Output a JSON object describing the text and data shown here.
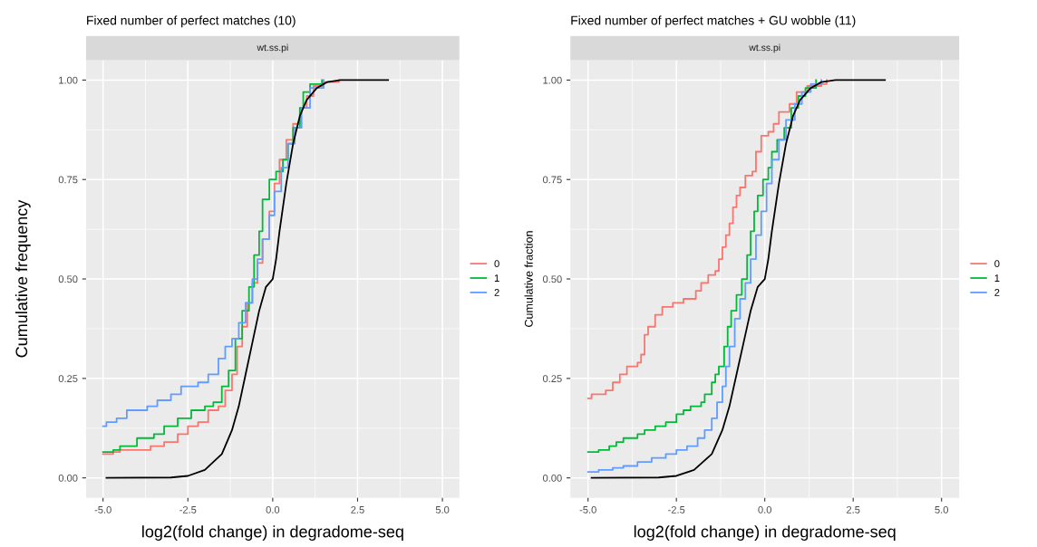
{
  "chart_data": [
    {
      "type": "step",
      "title": "Fixed number of perfect matches (10)",
      "annotations": [
        "wt.ss.pi"
      ],
      "xlabel": "log2(fold change) in degradome-seq",
      "ylabel": "Cumulative frequency",
      "xlim": [
        -5.5,
        5.5
      ],
      "ylim": [
        -0.05,
        1.05
      ],
      "xticks": [
        {
          "value": -5,
          "label": "-5.0"
        },
        {
          "value": -2.5,
          "label": "-2.5"
        },
        {
          "value": 0,
          "label": "0.0"
        },
        {
          "value": 2.5,
          "label": "2.5"
        },
        {
          "value": 5,
          "label": "5.0"
        }
      ],
      "yticks": [
        {
          "value": 0,
          "label": "0.00"
        },
        {
          "value": 0.25,
          "label": "0.25"
        },
        {
          "value": 0.5,
          "label": "0.50"
        },
        {
          "value": 0.75,
          "label": "0.75"
        },
        {
          "value": 1,
          "label": "1.00"
        }
      ],
      "grid": true,
      "legend": "right",
      "series": [
        {
          "name": "0",
          "color": "#f8766d",
          "x": [
            -5,
            -4.7,
            -4.5,
            -3.6,
            -3.2,
            -2.8,
            -2.5,
            -2.2,
            -1.9,
            -1.6,
            -1.4,
            -1.2,
            -1.05,
            -0.9,
            -0.75,
            -0.6,
            -0.45,
            -0.3,
            -0.1,
            0.05,
            0.2,
            0.4,
            0.6,
            0.8,
            1.0,
            1.2,
            1.5,
            1.95
          ],
          "values": [
            0.06,
            0.065,
            0.07,
            0.08,
            0.09,
            0.11,
            0.13,
            0.14,
            0.17,
            0.18,
            0.22,
            0.26,
            0.33,
            0.38,
            0.44,
            0.49,
            0.54,
            0.6,
            0.67,
            0.74,
            0.8,
            0.85,
            0.89,
            0.93,
            0.96,
            0.985,
            0.995,
            1.0
          ]
        },
        {
          "name": "1",
          "color": "#00ba38",
          "x": [
            -5,
            -4.7,
            -4.5,
            -4.0,
            -3.5,
            -3.2,
            -2.8,
            -2.4,
            -2.0,
            -1.75,
            -1.5,
            -1.3,
            -1.1,
            -0.9,
            -0.7,
            -0.55,
            -0.4,
            -0.3,
            -0.1,
            0.1,
            0.3,
            0.45,
            0.6,
            0.8,
            0.9,
            1.1,
            1.45
          ],
          "values": [
            0.065,
            0.07,
            0.08,
            0.1,
            0.11,
            0.13,
            0.15,
            0.17,
            0.18,
            0.19,
            0.23,
            0.27,
            0.35,
            0.42,
            0.48,
            0.56,
            0.62,
            0.7,
            0.75,
            0.77,
            0.8,
            0.84,
            0.88,
            0.93,
            0.97,
            0.99,
            1.0
          ]
        },
        {
          "name": "2",
          "color": "#619cff",
          "x": [
            -5,
            -4.9,
            -4.6,
            -4.3,
            -3.7,
            -3.4,
            -3.0,
            -2.7,
            -2.2,
            -1.9,
            -1.6,
            -1.4,
            -1.2,
            -1.0,
            -0.8,
            -0.6,
            -0.45,
            -0.3,
            -0.1,
            0.05,
            0.25,
            0.45,
            0.65,
            0.85,
            1.1,
            1.5
          ],
          "values": [
            0.13,
            0.14,
            0.15,
            0.17,
            0.18,
            0.195,
            0.21,
            0.23,
            0.24,
            0.26,
            0.3,
            0.33,
            0.35,
            0.39,
            0.44,
            0.5,
            0.55,
            0.6,
            0.66,
            0.72,
            0.78,
            0.84,
            0.88,
            0.93,
            0.98,
            1.0
          ]
        },
        {
          "type": "line",
          "color": "#000000",
          "x": [
            -4.9,
            -3,
            -2.5,
            -2,
            -1.5,
            -1.2,
            -1.0,
            -0.8,
            -0.6,
            -0.4,
            -0.2,
            0,
            0.1,
            0.2,
            0.4,
            0.6,
            0.8,
            1.0,
            1.3,
            1.6,
            2.0,
            3.4
          ],
          "values": [
            0,
            0.001,
            0.005,
            0.02,
            0.06,
            0.12,
            0.18,
            0.26,
            0.34,
            0.42,
            0.48,
            0.5,
            0.55,
            0.62,
            0.74,
            0.84,
            0.91,
            0.95,
            0.98,
            0.995,
            1.0,
            1.0
          ]
        }
      ]
    },
    {
      "type": "step",
      "title": "Fixed number of perfect matches + GU wobble (11)",
      "annotations": [
        "wt.ss.pi"
      ],
      "xlabel": "log2(fold change) in degradome-seq",
      "ylabel": "Cumulative fraction",
      "xlim": [
        -5.5,
        5.5
      ],
      "ylim": [
        -0.05,
        1.05
      ],
      "xticks": [
        {
          "value": -5,
          "label": "-5.0"
        },
        {
          "value": -2.5,
          "label": "-2.5"
        },
        {
          "value": 0,
          "label": "0.0"
        },
        {
          "value": 2.5,
          "label": "2.5"
        },
        {
          "value": 5,
          "label": "5.0"
        }
      ],
      "yticks": [
        {
          "value": 0,
          "label": "0.00"
        },
        {
          "value": 0.25,
          "label": "0.25"
        },
        {
          "value": 0.5,
          "label": "0.50"
        },
        {
          "value": 0.75,
          "label": "0.75"
        },
        {
          "value": 1,
          "label": "1.00"
        }
      ],
      "grid": true,
      "legend": "right",
      "series": [
        {
          "name": "0",
          "color": "#f8766d",
          "x": [
            -5,
            -4.9,
            -4.5,
            -4.3,
            -4.1,
            -3.9,
            -3.6,
            -3.5,
            -3.4,
            -3.3,
            -3.1,
            -2.9,
            -2.6,
            -2.3,
            -1.95,
            -1.8,
            -1.6,
            -1.4,
            -1.3,
            -1.2,
            -1.1,
            -1.0,
            -0.9,
            -0.8,
            -0.7,
            -0.55,
            -0.35,
            -0.25,
            -0.1,
            0.1,
            0.25,
            0.4,
            0.7,
            0.9,
            1.2,
            1.6,
            1.75
          ],
          "values": [
            0.2,
            0.21,
            0.22,
            0.24,
            0.26,
            0.28,
            0.29,
            0.31,
            0.36,
            0.38,
            0.41,
            0.43,
            0.44,
            0.45,
            0.47,
            0.49,
            0.51,
            0.52,
            0.55,
            0.58,
            0.61,
            0.64,
            0.68,
            0.71,
            0.73,
            0.76,
            0.77,
            0.82,
            0.86,
            0.87,
            0.89,
            0.92,
            0.94,
            0.97,
            0.985,
            0.99,
            1.0
          ]
        },
        {
          "name": "1",
          "color": "#00ba38",
          "x": [
            -5,
            -4.7,
            -4.4,
            -4.2,
            -4.0,
            -3.6,
            -3.4,
            -3.1,
            -2.8,
            -2.5,
            -2.3,
            -2.1,
            -1.8,
            -1.7,
            -1.5,
            -1.4,
            -1.3,
            -1.15,
            -1.05,
            -0.95,
            -0.8,
            -0.65,
            -0.5,
            -0.4,
            -0.3,
            -0.2,
            -0.05,
            0.1,
            0.2,
            0.35,
            0.55,
            0.75,
            0.95,
            1.15,
            1.45
          ],
          "values": [
            0.065,
            0.07,
            0.08,
            0.09,
            0.1,
            0.11,
            0.12,
            0.13,
            0.14,
            0.16,
            0.17,
            0.18,
            0.19,
            0.21,
            0.24,
            0.26,
            0.28,
            0.33,
            0.38,
            0.42,
            0.46,
            0.5,
            0.56,
            0.62,
            0.67,
            0.71,
            0.75,
            0.78,
            0.82,
            0.85,
            0.88,
            0.93,
            0.96,
            0.98,
            1.0
          ]
        },
        {
          "name": "2",
          "color": "#619cff",
          "x": [
            -5,
            -4.7,
            -4.3,
            -4.0,
            -3.6,
            -3.2,
            -2.8,
            -2.5,
            -2.2,
            -1.9,
            -1.7,
            -1.5,
            -1.35,
            -1.2,
            -1.1,
            -1.0,
            -0.85,
            -0.7,
            -0.55,
            -0.4,
            -0.25,
            -0.1,
            0.05,
            0.2,
            0.4,
            0.6,
            0.85,
            1.05,
            1.3,
            1.6
          ],
          "values": [
            0.015,
            0.02,
            0.025,
            0.03,
            0.04,
            0.05,
            0.06,
            0.07,
            0.08,
            0.1,
            0.12,
            0.15,
            0.19,
            0.23,
            0.28,
            0.33,
            0.4,
            0.45,
            0.49,
            0.55,
            0.61,
            0.67,
            0.74,
            0.8,
            0.85,
            0.9,
            0.94,
            0.97,
            0.99,
            1.0
          ]
        },
        {
          "type": "line",
          "color": "#000000",
          "x": [
            -4.9,
            -3,
            -2.5,
            -2,
            -1.5,
            -1.2,
            -1.0,
            -0.8,
            -0.6,
            -0.4,
            -0.2,
            0,
            0.1,
            0.2,
            0.4,
            0.6,
            0.8,
            1.0,
            1.3,
            1.6,
            2.0,
            3.4
          ],
          "values": [
            0,
            0.001,
            0.005,
            0.02,
            0.06,
            0.12,
            0.18,
            0.26,
            0.34,
            0.42,
            0.48,
            0.5,
            0.55,
            0.62,
            0.74,
            0.84,
            0.91,
            0.95,
            0.98,
            0.995,
            1.0,
            1.0
          ]
        }
      ]
    }
  ]
}
